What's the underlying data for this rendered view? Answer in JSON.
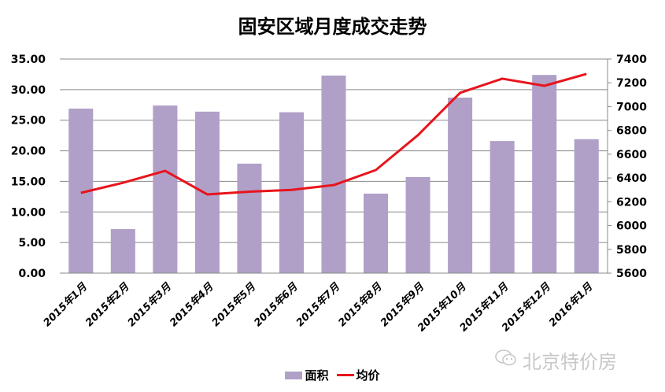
{
  "chart_data": {
    "type": "bar+line",
    "title": "固安区域月度成交走势",
    "categories": [
      "2015年1月",
      "2015年2月",
      "2015年3月",
      "2015年4月",
      "2015年5月",
      "2015年6月",
      "2015年7月",
      "2015年8月",
      "2015年9月",
      "2015年10月",
      "2015年11月",
      "2015年12月",
      "2016年1月"
    ],
    "series": [
      {
        "name": "面积",
        "type": "bar",
        "axis": "left",
        "color": "#B0A0C8",
        "values": [
          26.9,
          7.2,
          27.4,
          26.4,
          17.9,
          26.3,
          32.3,
          13.0,
          15.7,
          28.7,
          21.6,
          32.4,
          21.9
        ]
      },
      {
        "name": "均价",
        "type": "line",
        "axis": "right",
        "color": "#E8141C",
        "values": [
          6275,
          6360,
          6460,
          6262,
          6285,
          6300,
          6340,
          6467,
          6760,
          7116,
          7235,
          7175,
          7275
        ]
      }
    ],
    "y_left": {
      "min": 0,
      "max": 35,
      "step": 5,
      "ticks": [
        "0.00",
        "5.00",
        "10.00",
        "15.00",
        "20.00",
        "25.00",
        "30.00",
        "35.00"
      ]
    },
    "y_right": {
      "min": 5600,
      "max": 7400,
      "step": 200,
      "ticks": [
        "5600",
        "5800",
        "6000",
        "6200",
        "6400",
        "6600",
        "6800",
        "7000",
        "7200",
        "7400"
      ]
    },
    "grid": true,
    "legend_position": "bottom"
  },
  "legend": {
    "bar_label": "面积",
    "line_label": "均价"
  },
  "watermark": {
    "text": "北京特价房"
  }
}
